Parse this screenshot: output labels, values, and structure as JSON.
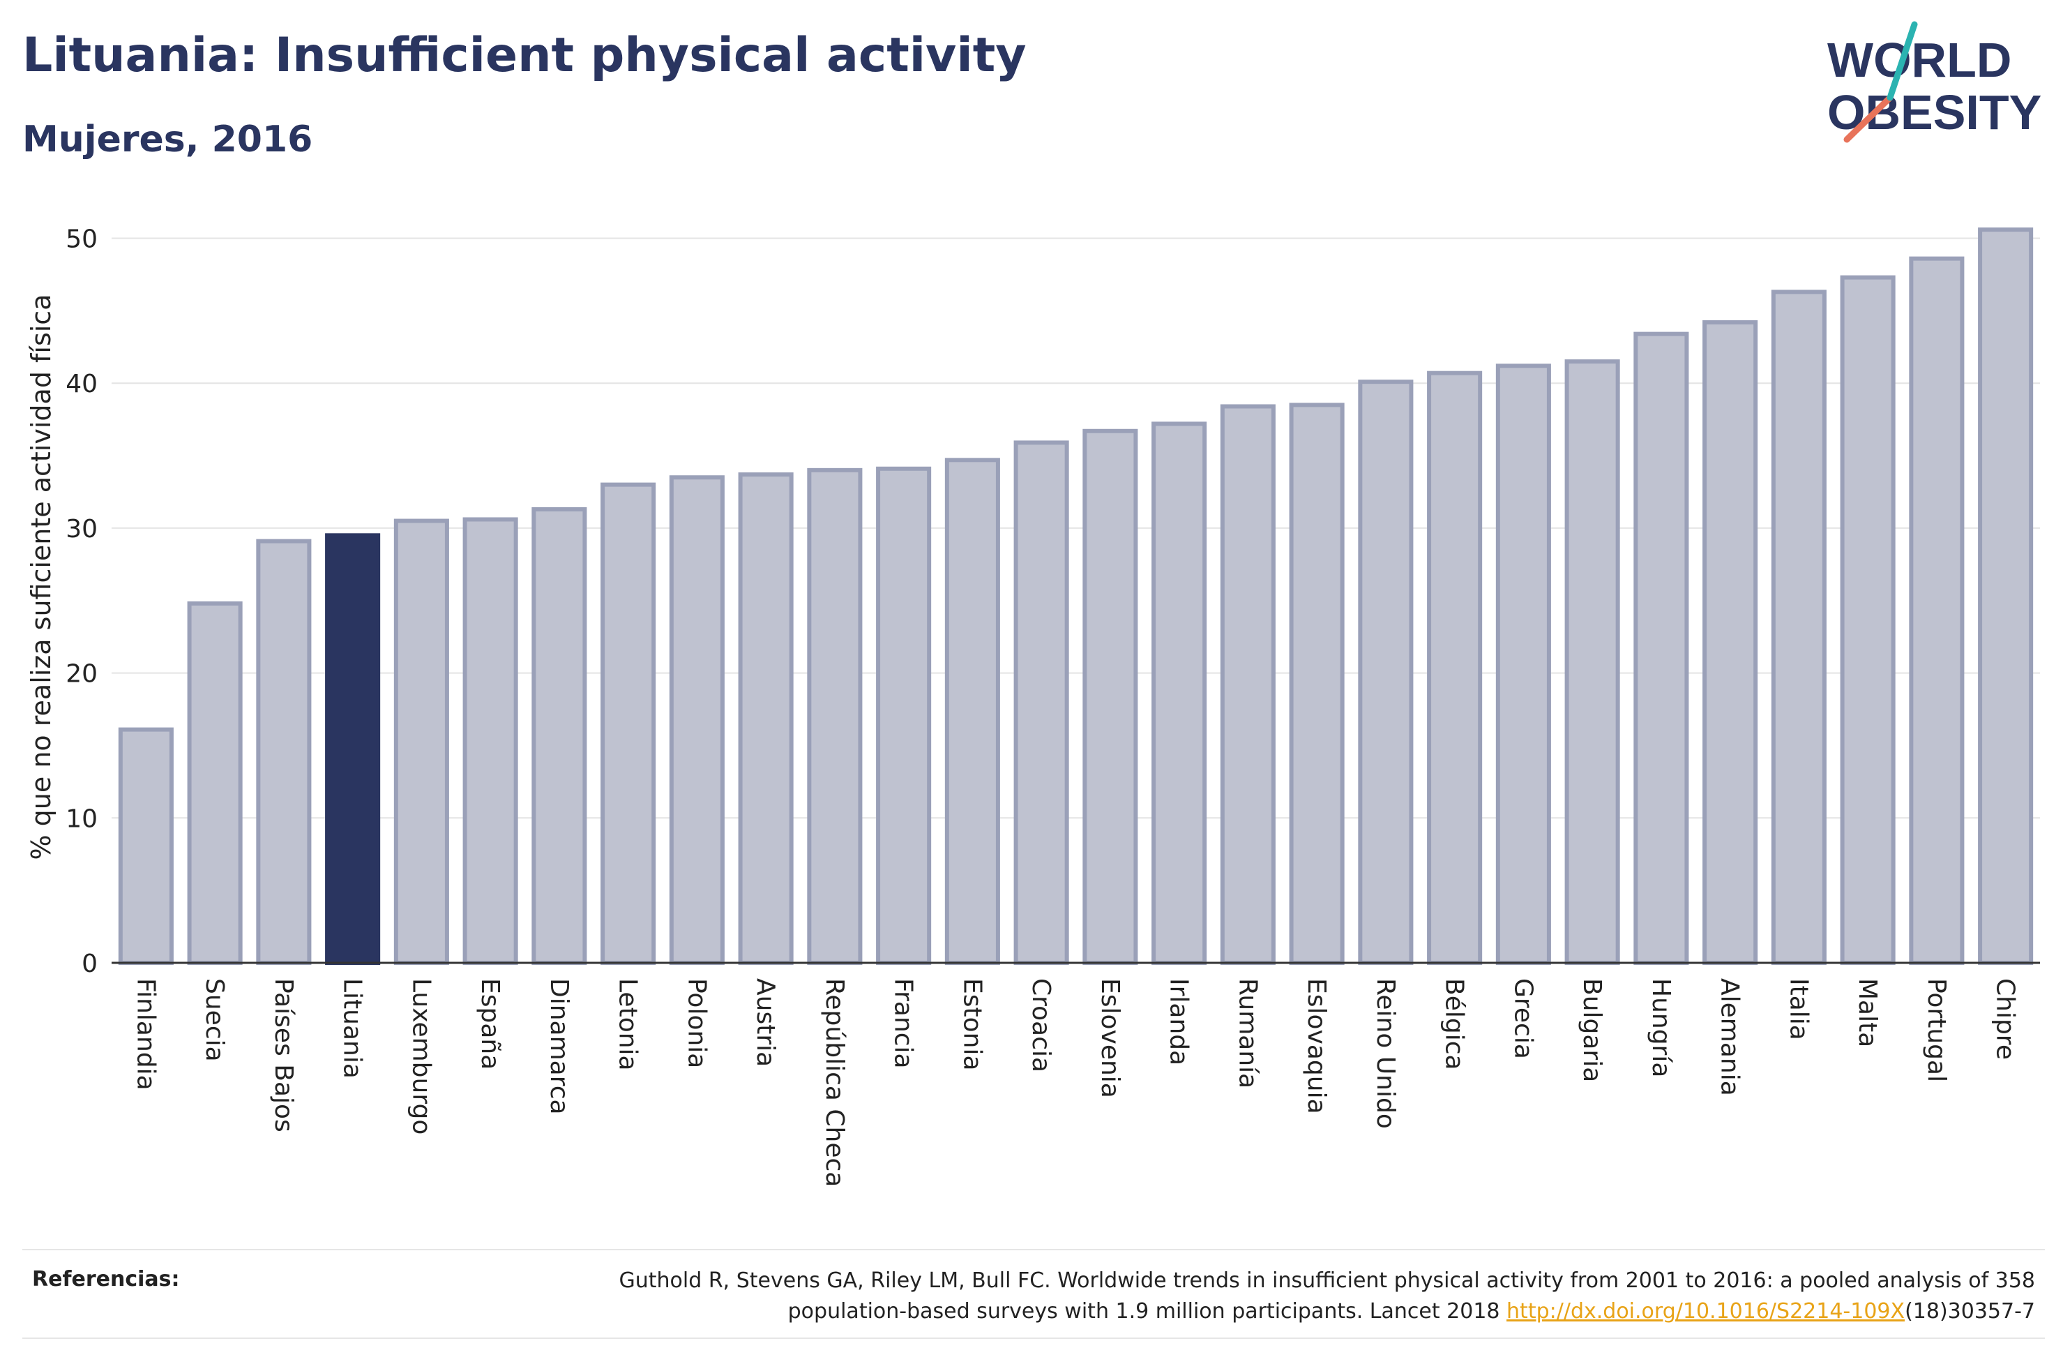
{
  "header": {
    "title": "Lituania: Insufficient physical activity",
    "subtitle": "Mujeres, 2016"
  },
  "logo": {
    "line1": "WORLD",
    "line2": "OBESITY",
    "colors": {
      "text": "#2a3560",
      "slash_top": "#2bb3b1",
      "slash_bottom": "#e8735a"
    }
  },
  "chart_data": {
    "type": "bar",
    "ylabel": "% que no realiza suficiente actividad física",
    "xlabel": "",
    "ylim": [
      0,
      52
    ],
    "yticks": [
      0,
      10,
      20,
      30,
      40,
      50
    ],
    "grid": true,
    "highlight": "Lituania",
    "colors": {
      "bar": "#bfc2d0",
      "bar_border": "#9aa0b8",
      "highlight": "#2a3560"
    },
    "categories": [
      "Finlandia",
      "Suecia",
      "Países Bajos",
      "Lituania",
      "Luxemburgo",
      "España",
      "Dinamarca",
      "Letonia",
      "Polonia",
      "Austria",
      "República Checa",
      "Francia",
      "Estonia",
      "Croacia",
      "Eslovenia",
      "Irlanda",
      "Rumanía",
      "Eslovaquia",
      "Reino Unido",
      "Bélgica",
      "Grecia",
      "Bulgaria",
      "Hungría",
      "Alemania",
      "Italia",
      "Malta",
      "Portugal",
      "Chipre"
    ],
    "values": [
      16.1,
      24.8,
      29.1,
      29.5,
      30.5,
      30.6,
      31.3,
      33.0,
      33.5,
      33.7,
      34.0,
      34.1,
      34.7,
      35.9,
      36.7,
      37.2,
      38.4,
      38.5,
      40.1,
      40.7,
      41.2,
      41.5,
      43.4,
      44.2,
      46.3,
      47.3,
      48.6,
      50.6
    ]
  },
  "footer": {
    "label": "Referencias:",
    "ref_line1": "Guthold R, Stevens GA, Riley LM, Bull FC. Worldwide trends in insufficient physical activity from 2001 to 2016: a pooled analysis of 358",
    "ref_line2_prefix": "population-based surveys with 1.9 million participants. Lancet 2018 ",
    "ref_link": "http://dx.doi.org/10.1016/S2214-109X",
    "ref_line2_suffix": "(18)30357-7"
  }
}
